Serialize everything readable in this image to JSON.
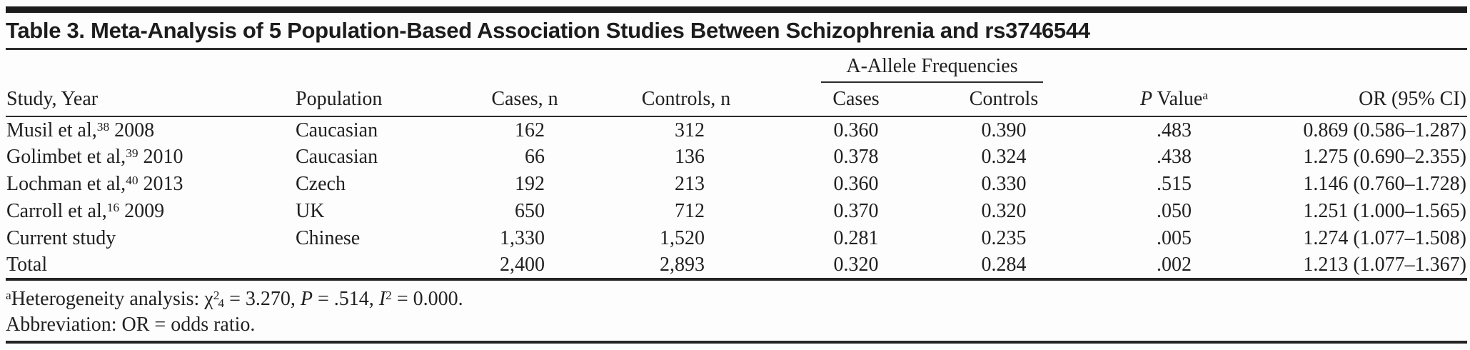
{
  "page": {
    "background": "#fdfdfd",
    "text_color": "#212121",
    "rule_color": "#2b2b2b"
  },
  "table": {
    "title": "Table 3. Meta-Analysis of 5 Population-Based Association Studies Between Schizophrenia and rs3746544",
    "span_header": {
      "label": "A-Allele Frequencies"
    },
    "columns": {
      "study": "Study, Year",
      "population": "Population",
      "cases_n": "Cases, n",
      "controls_n": "Controls, n",
      "freq_cases": "Cases",
      "freq_controls": "Controls",
      "p_value": {
        "italic": "P",
        "rest": " Value",
        "sup": "a"
      },
      "or_ci": "OR (95% CI)"
    },
    "rows": [
      {
        "study": "Musil et al,",
        "ref": "38",
        "year": "2008",
        "population": "Caucasian",
        "cases_n": "162",
        "controls_n": "312",
        "freq_cases": "0.360",
        "freq_controls": "0.390",
        "p_value": ".483",
        "or_ci": "0.869 (0.586–1.287)"
      },
      {
        "study": "Golimbet et al,",
        "ref": "39",
        "year": "2010",
        "population": "Caucasian",
        "cases_n": "66",
        "controls_n": "136",
        "freq_cases": "0.378",
        "freq_controls": "0.324",
        "p_value": ".438",
        "or_ci": "1.275 (0.690–2.355)"
      },
      {
        "study": "Lochman et al,",
        "ref": "40",
        "year": "2013",
        "population": "Czech",
        "cases_n": "192",
        "controls_n": "213",
        "freq_cases": "0.360",
        "freq_controls": "0.330",
        "p_value": ".515",
        "or_ci": "1.146 (0.760–1.728)"
      },
      {
        "study": "Carroll et al,",
        "ref": "16",
        "year": "2009",
        "population": "UK",
        "cases_n": "650",
        "controls_n": "712",
        "freq_cases": "0.370",
        "freq_controls": "0.320",
        "p_value": ".050",
        "or_ci": "1.251 (1.000–1.565)"
      },
      {
        "study": "Current study",
        "ref": "",
        "year": "",
        "population": "Chinese",
        "cases_n": "1,330",
        "controls_n": "1,520",
        "freq_cases": "0.281",
        "freq_controls": "0.235",
        "p_value": ".005",
        "or_ci": "1.274 (1.077–1.508)"
      },
      {
        "study": "Total",
        "ref": "",
        "year": "",
        "population": "",
        "cases_n": "2,400",
        "controls_n": "2,893",
        "freq_cases": "0.320",
        "freq_controls": "0.284",
        "p_value": ".002",
        "or_ci": "1.213 (1.077–1.367)"
      }
    ],
    "footnotes": [
      {
        "segments": [
          {
            "t": "sup",
            "v": "a"
          },
          {
            "t": "text",
            "v": "Heterogeneity analysis: χ"
          },
          {
            "t": "sup",
            "v": "2"
          },
          {
            "t": "sub",
            "v": "4"
          },
          {
            "t": "text",
            "v": " = 3.270, "
          },
          {
            "t": "i",
            "v": "P"
          },
          {
            "t": "text",
            "v": " = .514, "
          },
          {
            "t": "i",
            "v": "I"
          },
          {
            "t": "sup",
            "v": "2"
          },
          {
            "t": "text",
            "v": " = 0.000."
          }
        ]
      },
      {
        "segments": [
          {
            "t": "text",
            "v": "Abbreviation: OR = odds ratio."
          }
        ]
      }
    ]
  }
}
